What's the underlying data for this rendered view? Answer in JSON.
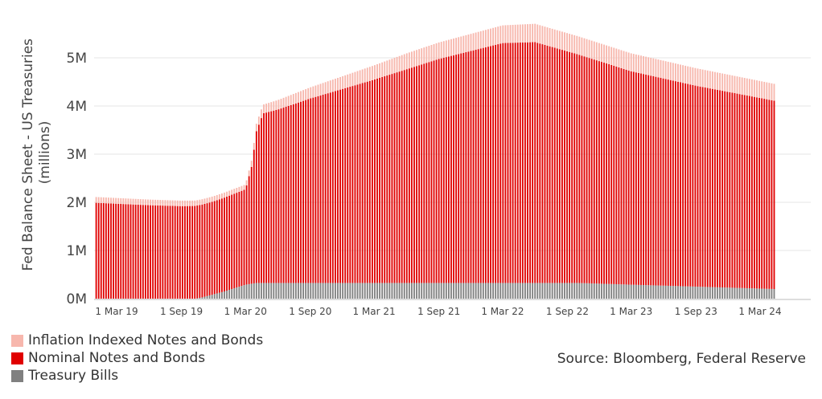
{
  "chart_data": {
    "type": "bar",
    "stacked": true,
    "ylabel_line1": "Fed Balance Sheet - US Treasuries",
    "ylabel_line2": "(millions)",
    "ylim": [
      0,
      6000000
    ],
    "yticks": [
      {
        "value": 0,
        "label": "0M"
      },
      {
        "value": 1000000,
        "label": "1M"
      },
      {
        "value": 2000000,
        "label": "2M"
      },
      {
        "value": 3000000,
        "label": "3M"
      },
      {
        "value": 4000000,
        "label": "4M"
      },
      {
        "value": 5000000,
        "label": "5M"
      }
    ],
    "xticks": [
      "1 Mar 19",
      "1 Sep 19",
      "1 Mar 20",
      "1 Sep 20",
      "1 Mar 21",
      "1 Sep 21",
      "1 Mar 22",
      "1 Sep 22",
      "1 Mar 23",
      "1 Sep 23",
      "1 Mar 24"
    ],
    "x_start": "2019-01-02",
    "x_end": "2024-04-10",
    "frequency": "weekly",
    "grid": true,
    "legend_position": "bottom-left",
    "series": [
      {
        "name": "Inflation Indexed Notes and Bonds",
        "color": "#f7b7ad",
        "anchors": [
          [
            "2019-01-02",
            120000
          ],
          [
            "2019-09-01",
            115000
          ],
          [
            "2020-03-01",
            100000
          ],
          [
            "2020-04-15",
            180000
          ],
          [
            "2021-06-01",
            330000
          ],
          [
            "2022-06-01",
            380000
          ],
          [
            "2023-06-01",
            370000
          ],
          [
            "2024-04-10",
            350000
          ]
        ]
      },
      {
        "name": "Nominal Notes and Bonds",
        "color": "#e00000",
        "anchors": [
          [
            "2019-01-02",
            1990000
          ],
          [
            "2019-06-01",
            1940000
          ],
          [
            "2019-09-01",
            1920000
          ],
          [
            "2019-12-01",
            1930000
          ],
          [
            "2020-03-01",
            1980000
          ],
          [
            "2020-03-19",
            2450000
          ],
          [
            "2020-04-01",
            3150000
          ],
          [
            "2020-04-20",
            3520000
          ],
          [
            "2020-06-01",
            3600000
          ],
          [
            "2020-09-01",
            3830000
          ],
          [
            "2021-03-01",
            4220000
          ],
          [
            "2021-09-01",
            4650000
          ],
          [
            "2022-03-01",
            4980000
          ],
          [
            "2022-06-01",
            5000000
          ],
          [
            "2023-03-01",
            4430000
          ],
          [
            "2023-09-01",
            4170000
          ],
          [
            "2024-04-10",
            3910000
          ]
        ]
      },
      {
        "name": "Treasury Bills",
        "color": "#808080",
        "anchors": [
          [
            "2019-01-02",
            0
          ],
          [
            "2019-10-10",
            0
          ],
          [
            "2019-11-01",
            30000
          ],
          [
            "2020-01-01",
            150000
          ],
          [
            "2020-03-01",
            290000
          ],
          [
            "2020-04-01",
            326000
          ],
          [
            "2022-10-01",
            326000
          ],
          [
            "2023-03-01",
            290000
          ],
          [
            "2023-09-01",
            250000
          ],
          [
            "2024-04-10",
            200000
          ]
        ]
      }
    ]
  },
  "legend": {
    "items": [
      {
        "label": "Inflation Indexed Notes and Bonds",
        "color": "#f7b7ad"
      },
      {
        "label": "Nominal Notes and Bonds",
        "color": "#e00000"
      },
      {
        "label": "Treasury Bills",
        "color": "#808080"
      }
    ]
  },
  "source": "Source: Bloomberg, Federal Reserve"
}
